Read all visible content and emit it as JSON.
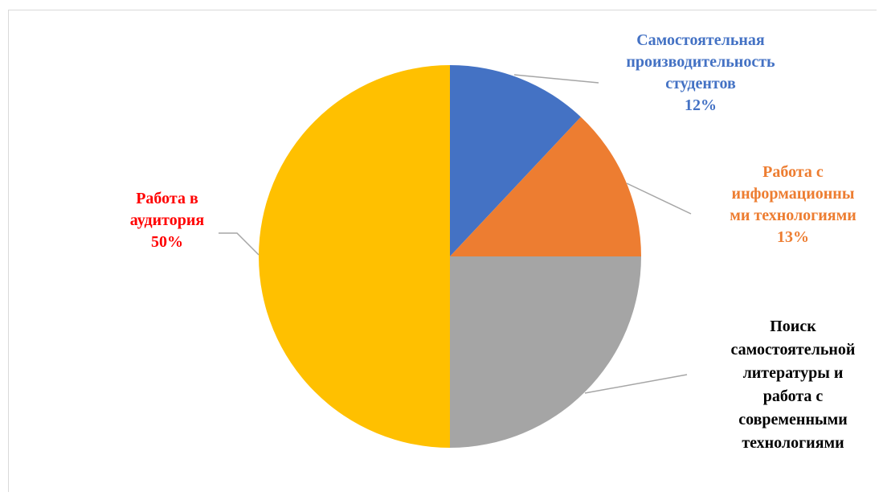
{
  "chart_data": {
    "type": "pie",
    "title": "",
    "slices": [
      {
        "name": "Самостоятельная производительность студентов",
        "label_lines": [
          "Самостоятельная",
          "производительность",
          "студентов"
        ],
        "value": 12,
        "pct_label": "12%",
        "color": "#4472C4",
        "label_color": "#4472C4"
      },
      {
        "name": "Работа с информационными технологиями",
        "label_lines": [
          "Работа с",
          "информационны",
          "ми технологиями"
        ],
        "value": 13,
        "pct_label": "13%",
        "color": "#ED7D31",
        "label_color": "#ED7D31"
      },
      {
        "name": "Поиск самостоятельной литературы и работа с современными технологиями",
        "label_lines": [
          "Поиск",
          "самостоятельной",
          "литературы  и",
          "работа с",
          "современными",
          "технологиями"
        ],
        "value": 25,
        "pct_label": "",
        "color": "#A5A5A5",
        "label_color": "#000000"
      },
      {
        "name": "Работа в аудитория",
        "label_lines": [
          "Работа в",
          "аудитория"
        ],
        "value": 50,
        "pct_label": "50%",
        "color": "#FFC000",
        "label_color": "#FF0000"
      }
    ],
    "legend": "none",
    "data_labels": "outside with leader lines"
  }
}
